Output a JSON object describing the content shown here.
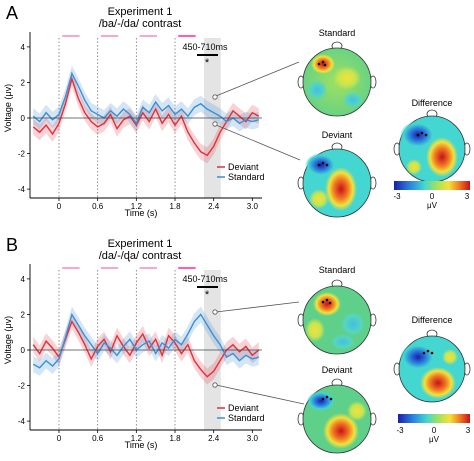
{
  "figure": {
    "panels": [
      {
        "letter": "A",
        "title_line1": "Experiment 1",
        "title_line2": "/ba/-/da/ contrast",
        "window_label": "450-710ms",
        "significance": "*",
        "ylabel": "Voltage (μv)",
        "xlabel": "Time (s)",
        "yticks": [
          "4",
          "2",
          "0",
          "-2",
          "-4"
        ],
        "xticks": [
          "0",
          "0.6",
          "1.2",
          "1.8",
          "2.4",
          "3.0"
        ],
        "legend": [
          {
            "label": "Deviant",
            "color": "#e0303a"
          },
          {
            "label": "Standard",
            "color": "#3b8fd6"
          }
        ],
        "maps": {
          "standard_label": "Standard",
          "deviant_label": "Deviant",
          "difference_label": "Difference",
          "colorbar_ticks": [
            "-3",
            "0",
            "3"
          ],
          "colorbar_unit": "μV"
        }
      },
      {
        "letter": "B",
        "title_line1": "Experiment 1",
        "title_line2": "/da/-/ɖa/ contrast",
        "window_label": "450-710ms",
        "significance": "*",
        "ylabel": "Voltage (μv)",
        "xlabel": "Time (s)",
        "yticks": [
          "4",
          "2",
          "0",
          "-2",
          "-4"
        ],
        "xticks": [
          "0",
          "0.6",
          "1.2",
          "1.8",
          "2.4",
          "3.0"
        ],
        "legend": [
          {
            "label": "Deviant",
            "color": "#e0303a"
          },
          {
            "label": "Standard",
            "color": "#3b8fd6"
          }
        ],
        "maps": {
          "standard_label": "Standard",
          "deviant_label": "Deviant",
          "difference_label": "Difference",
          "colorbar_ticks": [
            "-3",
            "0",
            "3"
          ],
          "colorbar_unit": "μV"
        }
      }
    ]
  },
  "chart_data": [
    {
      "type": "line",
      "title": "Experiment 1 /ba/-/da/ contrast",
      "xlabel": "Time (s)",
      "ylabel": "Voltage (μv)",
      "xlim": [
        -0.45,
        3.15
      ],
      "ylim": [
        -4.5,
        4.5
      ],
      "series": [
        {
          "name": "Deviant",
          "color": "#e0303a",
          "x": [
            -0.4,
            -0.3,
            -0.2,
            -0.1,
            0,
            0.1,
            0.2,
            0.3,
            0.4,
            0.5,
            0.6,
            0.7,
            0.8,
            0.9,
            1.0,
            1.1,
            1.2,
            1.3,
            1.4,
            1.5,
            1.6,
            1.7,
            1.8,
            1.9,
            2.0,
            2.1,
            2.2,
            2.3,
            2.4,
            2.5,
            2.6,
            2.7,
            2.8,
            2.9,
            3.0,
            3.1
          ],
          "y": [
            -0.5,
            -0.8,
            -0.4,
            -0.9,
            -0.3,
            0.8,
            2.2,
            1.1,
            0.3,
            -0.2,
            -0.5,
            -0.3,
            0.2,
            -0.6,
            -0.1,
            0.1,
            -0.4,
            0.3,
            -0.2,
            0.5,
            -0.3,
            0.2,
            -0.4,
            0.1,
            -0.8,
            -1.4,
            -1.9,
            -2.1,
            -1.6,
            -0.8,
            -0.2,
            0.4,
            0.1,
            -0.2,
            0.3,
            0.1
          ]
        },
        {
          "name": "Standard",
          "color": "#3b8fd6",
          "x": [
            -0.4,
            -0.3,
            -0.2,
            -0.1,
            0,
            0.1,
            0.2,
            0.3,
            0.4,
            0.5,
            0.6,
            0.7,
            0.8,
            0.9,
            1.0,
            1.1,
            1.2,
            1.3,
            1.4,
            1.5,
            1.6,
            1.7,
            1.8,
            1.9,
            2.0,
            2.1,
            2.2,
            2.3,
            2.4,
            2.5,
            2.6,
            2.7,
            2.8,
            2.9,
            3.0,
            3.1
          ],
          "y": [
            0.1,
            -0.2,
            0.3,
            -0.1,
            0.2,
            1.2,
            2.5,
            1.8,
            1.0,
            0.4,
            0.2,
            0.0,
            0.4,
            0.1,
            0.5,
            0.2,
            -0.3,
            0.6,
            0.3,
            0.9,
            0.4,
            0.7,
            0.2,
            0.5,
            0.1,
            0.6,
            0.8,
            0.5,
            0.3,
            0.1,
            -0.2,
            0.0,
            -0.3,
            -0.1,
            -0.2,
            -0.1
          ]
        }
      ]
    },
    {
      "type": "line",
      "title": "Experiment 1 /da/-/ɖa/ contrast",
      "xlabel": "Time (s)",
      "ylabel": "Voltage (μv)",
      "xlim": [
        -0.45,
        3.15
      ],
      "ylim": [
        -4.5,
        4.5
      ],
      "series": [
        {
          "name": "Deviant",
          "color": "#e0303a",
          "x": [
            -0.4,
            -0.3,
            -0.2,
            -0.1,
            0,
            0.1,
            0.2,
            0.3,
            0.4,
            0.5,
            0.6,
            0.7,
            0.8,
            0.9,
            1.0,
            1.1,
            1.2,
            1.3,
            1.4,
            1.5,
            1.6,
            1.7,
            1.8,
            1.9,
            2.0,
            2.1,
            2.2,
            2.3,
            2.4,
            2.5,
            2.6,
            2.7,
            2.8,
            2.9,
            3.0,
            3.1
          ],
          "y": [
            0.3,
            -0.2,
            0.5,
            0.1,
            -0.4,
            0.6,
            1.6,
            1.0,
            0.3,
            -0.5,
            0.2,
            0.6,
            -0.1,
            0.8,
            0.2,
            -0.3,
            0.4,
            0.9,
            0.1,
            0.6,
            -0.3,
            0.8,
            0.4,
            -0.2,
            0.3,
            -0.6,
            -1.1,
            -1.5,
            -1.2,
            -0.6,
            0.0,
            0.3,
            -0.1,
            0.2,
            -0.3,
            0.0
          ]
        },
        {
          "name": "Standard",
          "color": "#3b8fd6",
          "x": [
            -0.4,
            -0.3,
            -0.2,
            -0.1,
            0,
            0.1,
            0.2,
            0.3,
            0.4,
            0.5,
            0.6,
            0.7,
            0.8,
            0.9,
            1.0,
            1.1,
            1.2,
            1.3,
            1.4,
            1.5,
            1.6,
            1.7,
            1.8,
            1.9,
            2.0,
            2.1,
            2.2,
            2.3,
            2.4,
            2.5,
            2.6,
            2.7,
            2.8,
            2.9,
            3.0,
            3.1
          ],
          "y": [
            -0.8,
            -1.0,
            -0.6,
            -0.9,
            -0.5,
            0.7,
            2.0,
            1.4,
            0.8,
            0.3,
            -0.2,
            0.4,
            0.1,
            -0.3,
            0.2,
            0.6,
            0.0,
            0.3,
            0.5,
            -0.2,
            0.4,
            0.1,
            0.6,
            0.3,
            0.9,
            1.6,
            2.0,
            1.4,
            0.8,
            0.3,
            -0.4,
            -0.2,
            -0.6,
            -0.3,
            -0.5,
            -0.4
          ]
        }
      ]
    }
  ]
}
